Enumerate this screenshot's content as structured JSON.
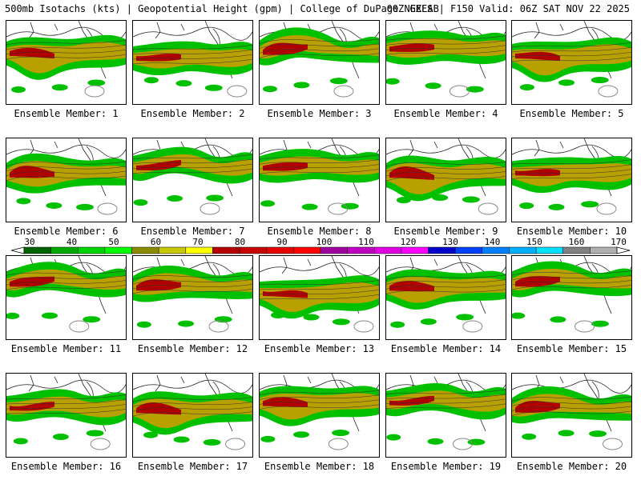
{
  "header": {
    "title": "500mb Isotachs (kts) | Geopotential Height (gpm) | College of DuPage NEXLAB",
    "run_info": "00Z GEFS | F150 Valid: 06Z SAT NOV 22 2025"
  },
  "colorbar": {
    "ticks": [
      "30",
      "40",
      "50",
      "60",
      "70",
      "80",
      "90",
      "100",
      "110",
      "120",
      "130",
      "140",
      "150",
      "160",
      "170"
    ],
    "colors": [
      "#006400",
      "#00aa00",
      "#00d400",
      "#00ff00",
      "#8b8b00",
      "#c8c800",
      "#ffff00",
      "#b40000",
      "#c80000",
      "#e60000",
      "#ff0000",
      "#a000a0",
      "#c000c0",
      "#e000e0",
      "#ff00ff",
      "#0000c8",
      "#0040ff",
      "#0080ff",
      "#00b0ff",
      "#00e0ff",
      "#808080",
      "#b0b0b0"
    ]
  },
  "members": [
    {
      "label": "Ensemble Member: 1"
    },
    {
      "label": "Ensemble Member: 2"
    },
    {
      "label": "Ensemble Member: 3"
    },
    {
      "label": "Ensemble Member: 4"
    },
    {
      "label": "Ensemble Member: 5"
    },
    {
      "label": "Ensemble Member: 6"
    },
    {
      "label": "Ensemble Member: 7"
    },
    {
      "label": "Ensemble Member: 8"
    },
    {
      "label": "Ensemble Member: 9"
    },
    {
      "label": "Ensemble Member: 10"
    },
    {
      "label": "Ensemble Member: 11"
    },
    {
      "label": "Ensemble Member: 12"
    },
    {
      "label": "Ensemble Member: 13"
    },
    {
      "label": "Ensemble Member: 14"
    },
    {
      "label": "Ensemble Member: 15"
    },
    {
      "label": "Ensemble Member: 16"
    },
    {
      "label": "Ensemble Member: 17"
    },
    {
      "label": "Ensemble Member: 18"
    },
    {
      "label": "Ensemble Member: 19"
    },
    {
      "label": "Ensemble Member: 20"
    }
  ]
}
